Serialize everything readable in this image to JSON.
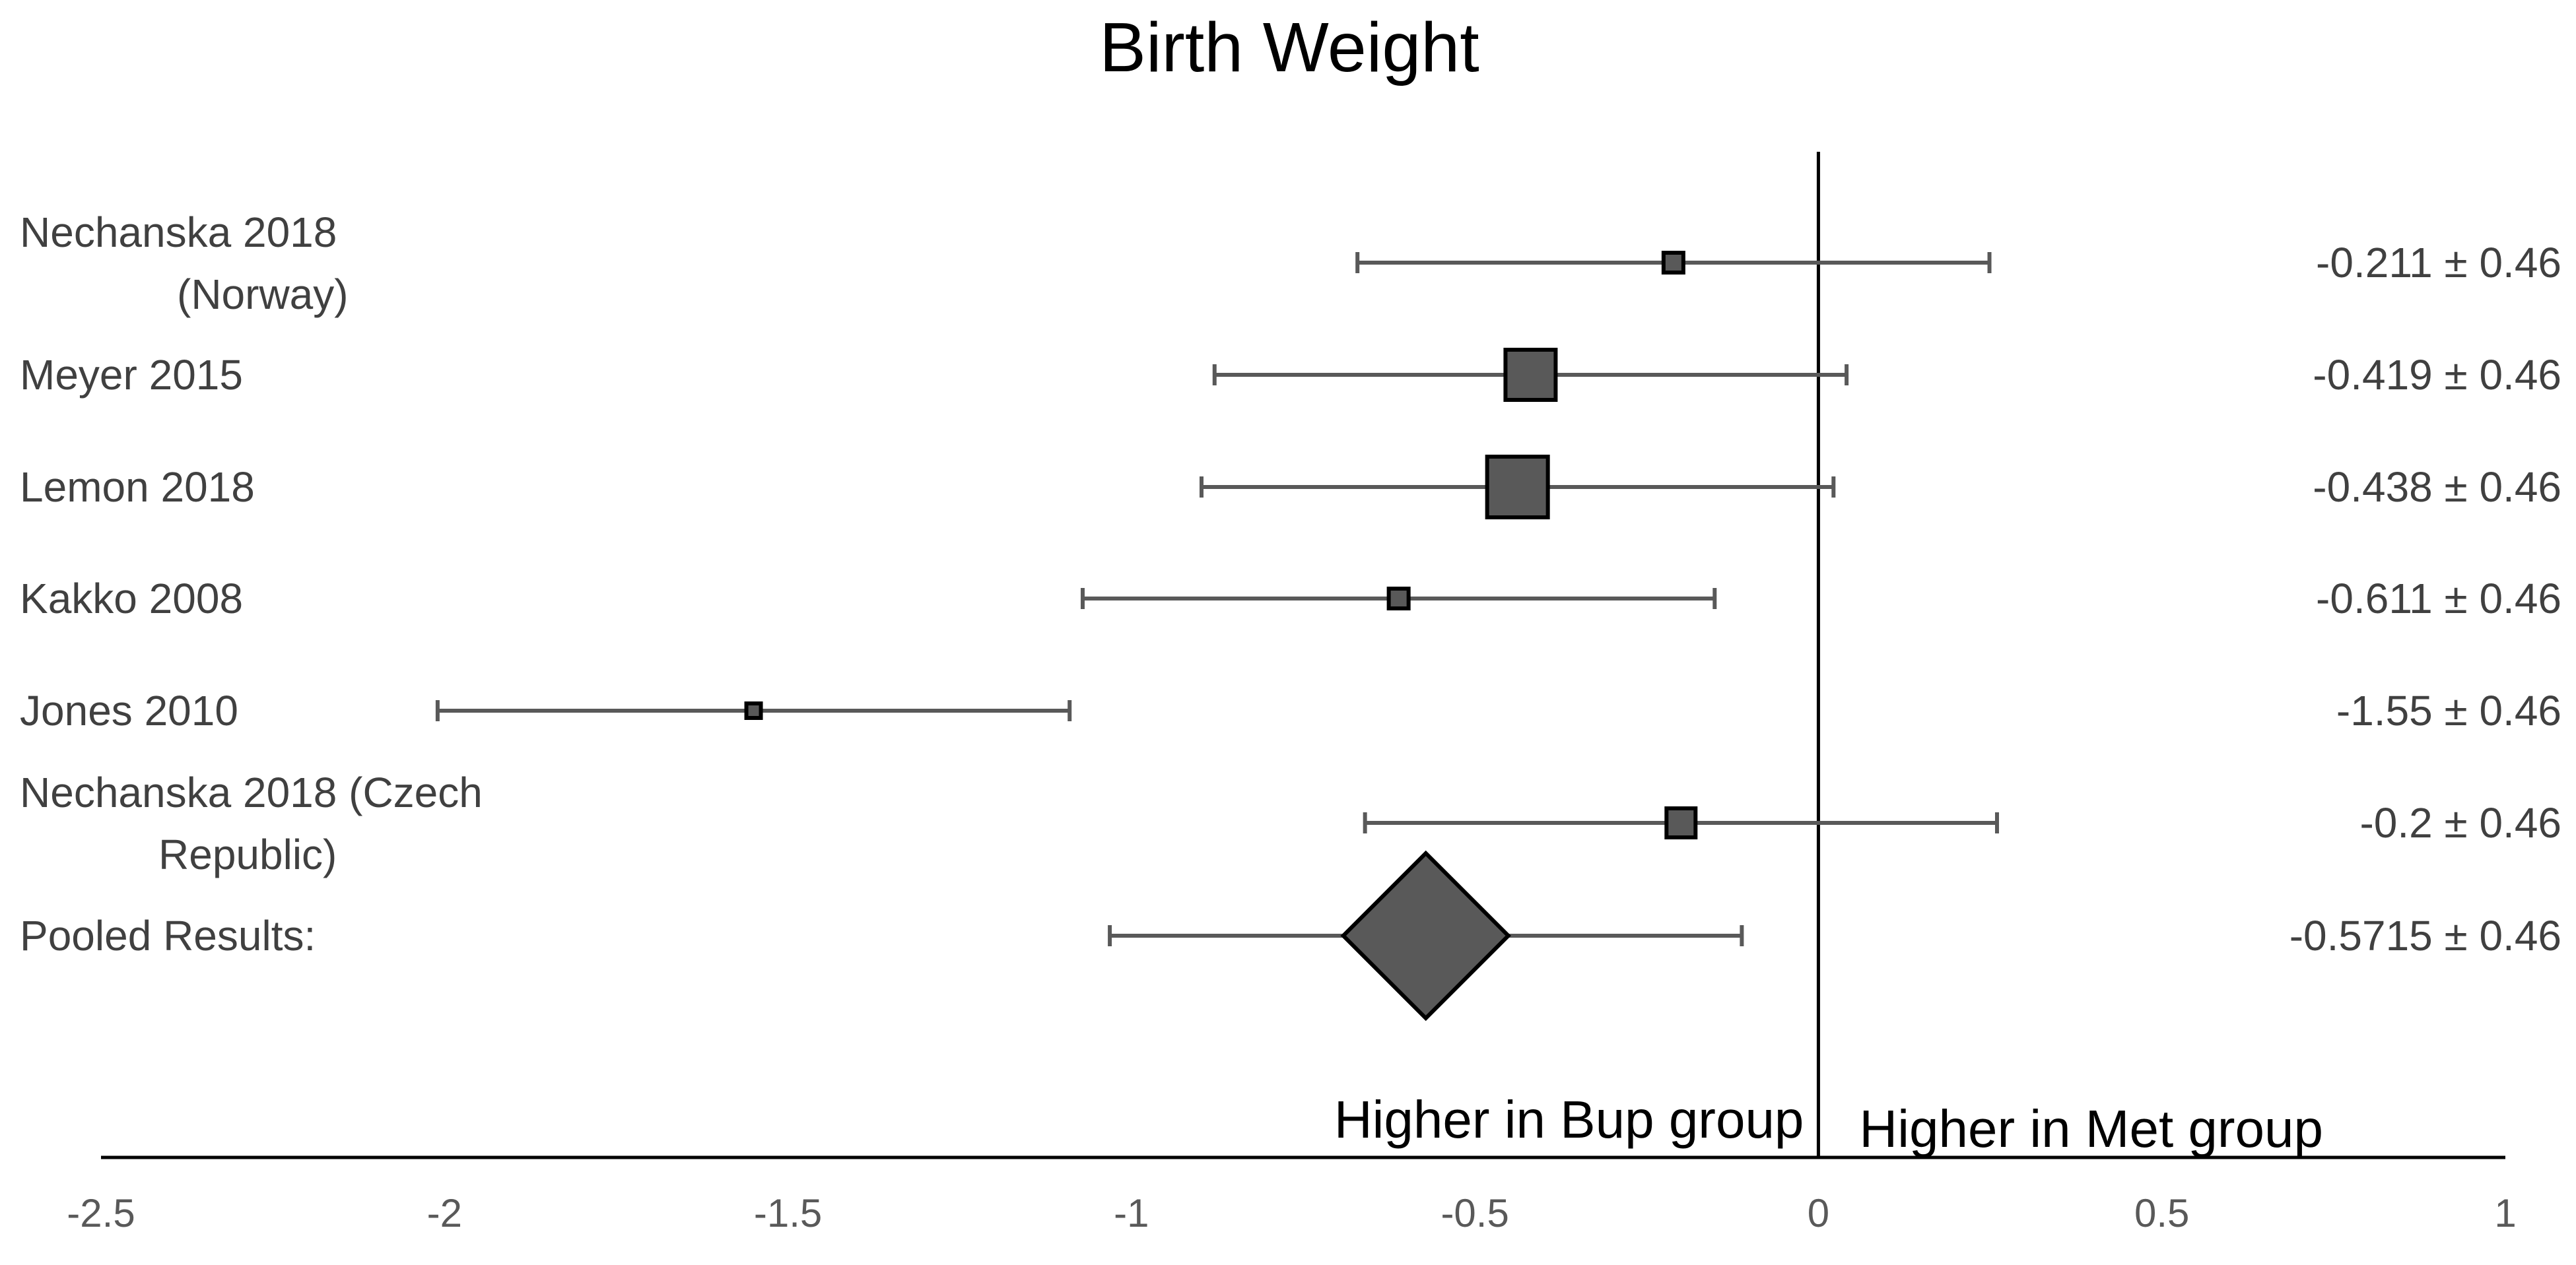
{
  "chart_data": {
    "type": "forest",
    "title": "Birth Weight",
    "xlim": [
      -2.5,
      1
    ],
    "x_ticks": [
      -2.5,
      -2,
      -1.5,
      -1,
      -0.5,
      0,
      0.5,
      1
    ],
    "x_tick_labels": [
      "-2.5",
      "-2",
      "-1.5",
      "-1",
      "-0.5",
      "0",
      "0.5",
      "1"
    ],
    "reference_line": 0,
    "left_region_label": "Higher in Bup group",
    "right_region_label": "Higher in Met group",
    "studies": [
      {
        "label_lines": [
          "Nechanska 2018",
          "(Norway)"
        ],
        "estimate": -0.211,
        "ci_low": -0.671,
        "ci_high": 0.249,
        "weight": "small",
        "value_label": "-0.211 ± 0.46"
      },
      {
        "label_lines": [
          "Meyer 2015"
        ],
        "estimate": -0.419,
        "ci_low": -0.879,
        "ci_high": 0.041,
        "weight": "large",
        "value_label": "-0.419 ± 0.46"
      },
      {
        "label_lines": [
          "Lemon 2018"
        ],
        "estimate": -0.438,
        "ci_low": -0.898,
        "ci_high": 0.022,
        "weight": "largest",
        "value_label": "-0.438 ± 0.46"
      },
      {
        "label_lines": [
          "Kakko 2008"
        ],
        "estimate": -0.611,
        "ci_low": -1.071,
        "ci_high": -0.151,
        "weight": "small",
        "value_label": "-0.611 ± 0.46"
      },
      {
        "label_lines": [
          "Jones 2010"
        ],
        "estimate": -1.55,
        "ci_low": -2.01,
        "ci_high": -1.09,
        "weight": "smallest",
        "value_label": "-1.55 ± 0.46"
      },
      {
        "label_lines": [
          "Nechanska 2018 (Czech",
          "Republic)"
        ],
        "estimate": -0.2,
        "ci_low": -0.66,
        "ci_high": 0.26,
        "weight": "medium",
        "value_label": "-0.2 ± 0.46"
      }
    ],
    "pooled": {
      "label": "Pooled Results:",
      "estimate": -0.5715,
      "ci_low": -1.0315,
      "ci_high": -0.1115,
      "value_label": "-0.5715 ± 0.46"
    }
  }
}
